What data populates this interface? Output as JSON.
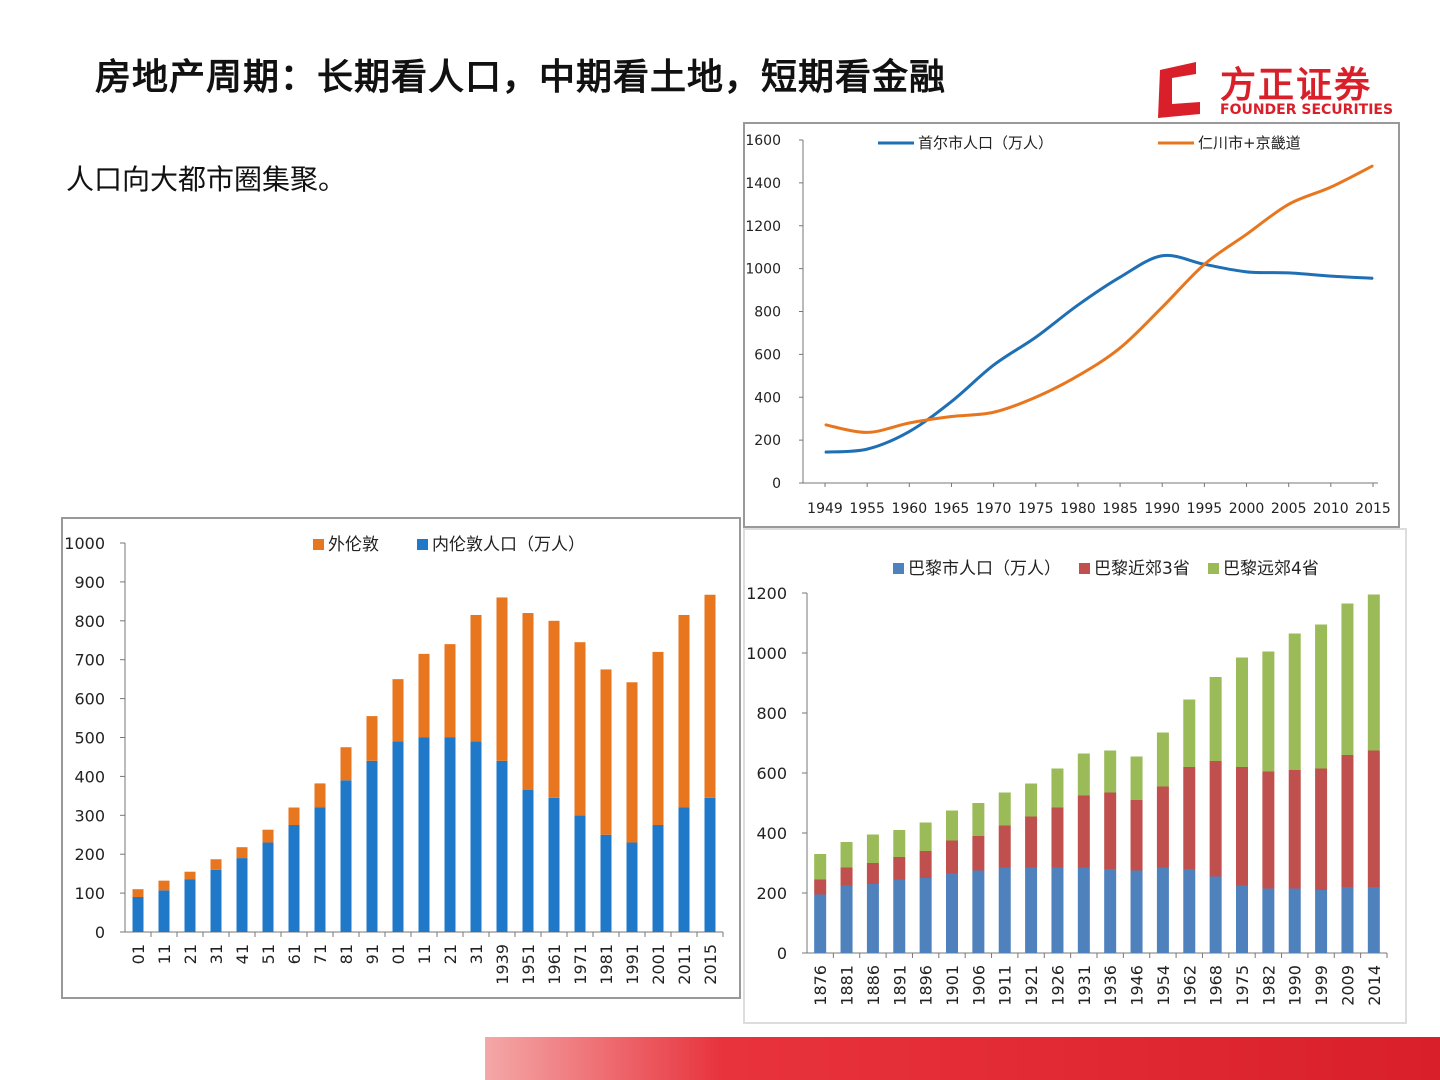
{
  "header": {
    "title": "房地产周期：长期看人口，中期看土地，短期看金融",
    "subtitle": "人口向大都市圈集聚。"
  },
  "logo": {
    "name": "方正证券",
    "english": "FOUNDER SECURITIES",
    "color": "#d9202a"
  },
  "chart_data": [
    {
      "type": "line",
      "x": [
        "1949",
        "1955",
        "1960",
        "1965",
        "1970",
        "1975",
        "1980",
        "1985",
        "1990",
        "1995",
        "2000",
        "2005",
        "2010",
        "2015"
      ],
      "series": [
        {
          "name": "首尔市人口（万人）",
          "color": "#1f6fb4",
          "values": [
            144,
            158,
            240,
            380,
            550,
            680,
            830,
            960,
            1060,
            1020,
            985,
            980,
            965,
            955
          ]
        },
        {
          "name": "仁川市+京畿道",
          "color": "#e8761e",
          "values": [
            272,
            236,
            280,
            310,
            330,
            400,
            500,
            630,
            820,
            1020,
            1160,
            1300,
            1380,
            1480
          ]
        }
      ],
      "ylim": [
        0,
        1600
      ],
      "yticks": [
        0,
        200,
        400,
        600,
        800,
        1000,
        1200,
        1400,
        1600
      ],
      "legend": "top"
    },
    {
      "type": "bar",
      "stacked": true,
      "categories": [
        "01",
        "11",
        "21",
        "31",
        "41",
        "51",
        "61",
        "71",
        "81",
        "91",
        "01",
        "11",
        "21",
        "31",
        "1939",
        "1951",
        "1961",
        "1971",
        "1981",
        "1991",
        "2001",
        "2011",
        "2015"
      ],
      "series": [
        {
          "name": "内伦敦人口（万人）",
          "color": "#1f78c8",
          "values": [
            90,
            107,
            135,
            160,
            190,
            230,
            275,
            320,
            390,
            440,
            490,
            500,
            500,
            490,
            440,
            365,
            345,
            300,
            250,
            230,
            275,
            320,
            345
          ]
        },
        {
          "name": "外伦敦",
          "color": "#e8761e",
          "values": [
            20,
            25,
            20,
            27,
            28,
            33,
            45,
            62,
            85,
            115,
            160,
            215,
            240,
            325,
            420,
            455,
            455,
            445,
            425,
            412,
            445,
            495,
            522
          ]
        }
      ],
      "ylim": [
        0,
        1000
      ],
      "yticks": [
        0,
        100,
        200,
        300,
        400,
        500,
        600,
        700,
        800,
        900,
        1000
      ],
      "legend": "top"
    },
    {
      "type": "bar",
      "stacked": true,
      "categories": [
        "1876",
        "1881",
        "1886",
        "1891",
        "1896",
        "1901",
        "1906",
        "1911",
        "1921",
        "1926",
        "1931",
        "1936",
        "1946",
        "1954",
        "1962",
        "1968",
        "1975",
        "1982",
        "1990",
        "1999",
        "2009",
        "2014"
      ],
      "series": [
        {
          "name": "巴黎市人口（万人）",
          "color": "#4f81bd",
          "values": [
            195,
            225,
            230,
            245,
            250,
            265,
            275,
            285,
            285,
            285,
            285,
            280,
            275,
            285,
            280,
            255,
            225,
            215,
            215,
            210,
            220,
            220
          ]
        },
        {
          "name": "巴黎近郊3省",
          "color": "#c0504d",
          "values": [
            50,
            60,
            70,
            75,
            90,
            110,
            115,
            140,
            170,
            200,
            240,
            255,
            235,
            270,
            340,
            385,
            395,
            390,
            395,
            405,
            440,
            455
          ]
        },
        {
          "name": "巴黎远郊4省",
          "color": "#9bbb59",
          "values": [
            85,
            85,
            95,
            90,
            95,
            100,
            110,
            110,
            110,
            130,
            140,
            140,
            145,
            180,
            225,
            280,
            365,
            400,
            455,
            480,
            505,
            520
          ]
        }
      ],
      "ylim": [
        0,
        1200
      ],
      "yticks": [
        0,
        200,
        400,
        600,
        800,
        1000,
        1200
      ],
      "legend": "top"
    }
  ]
}
